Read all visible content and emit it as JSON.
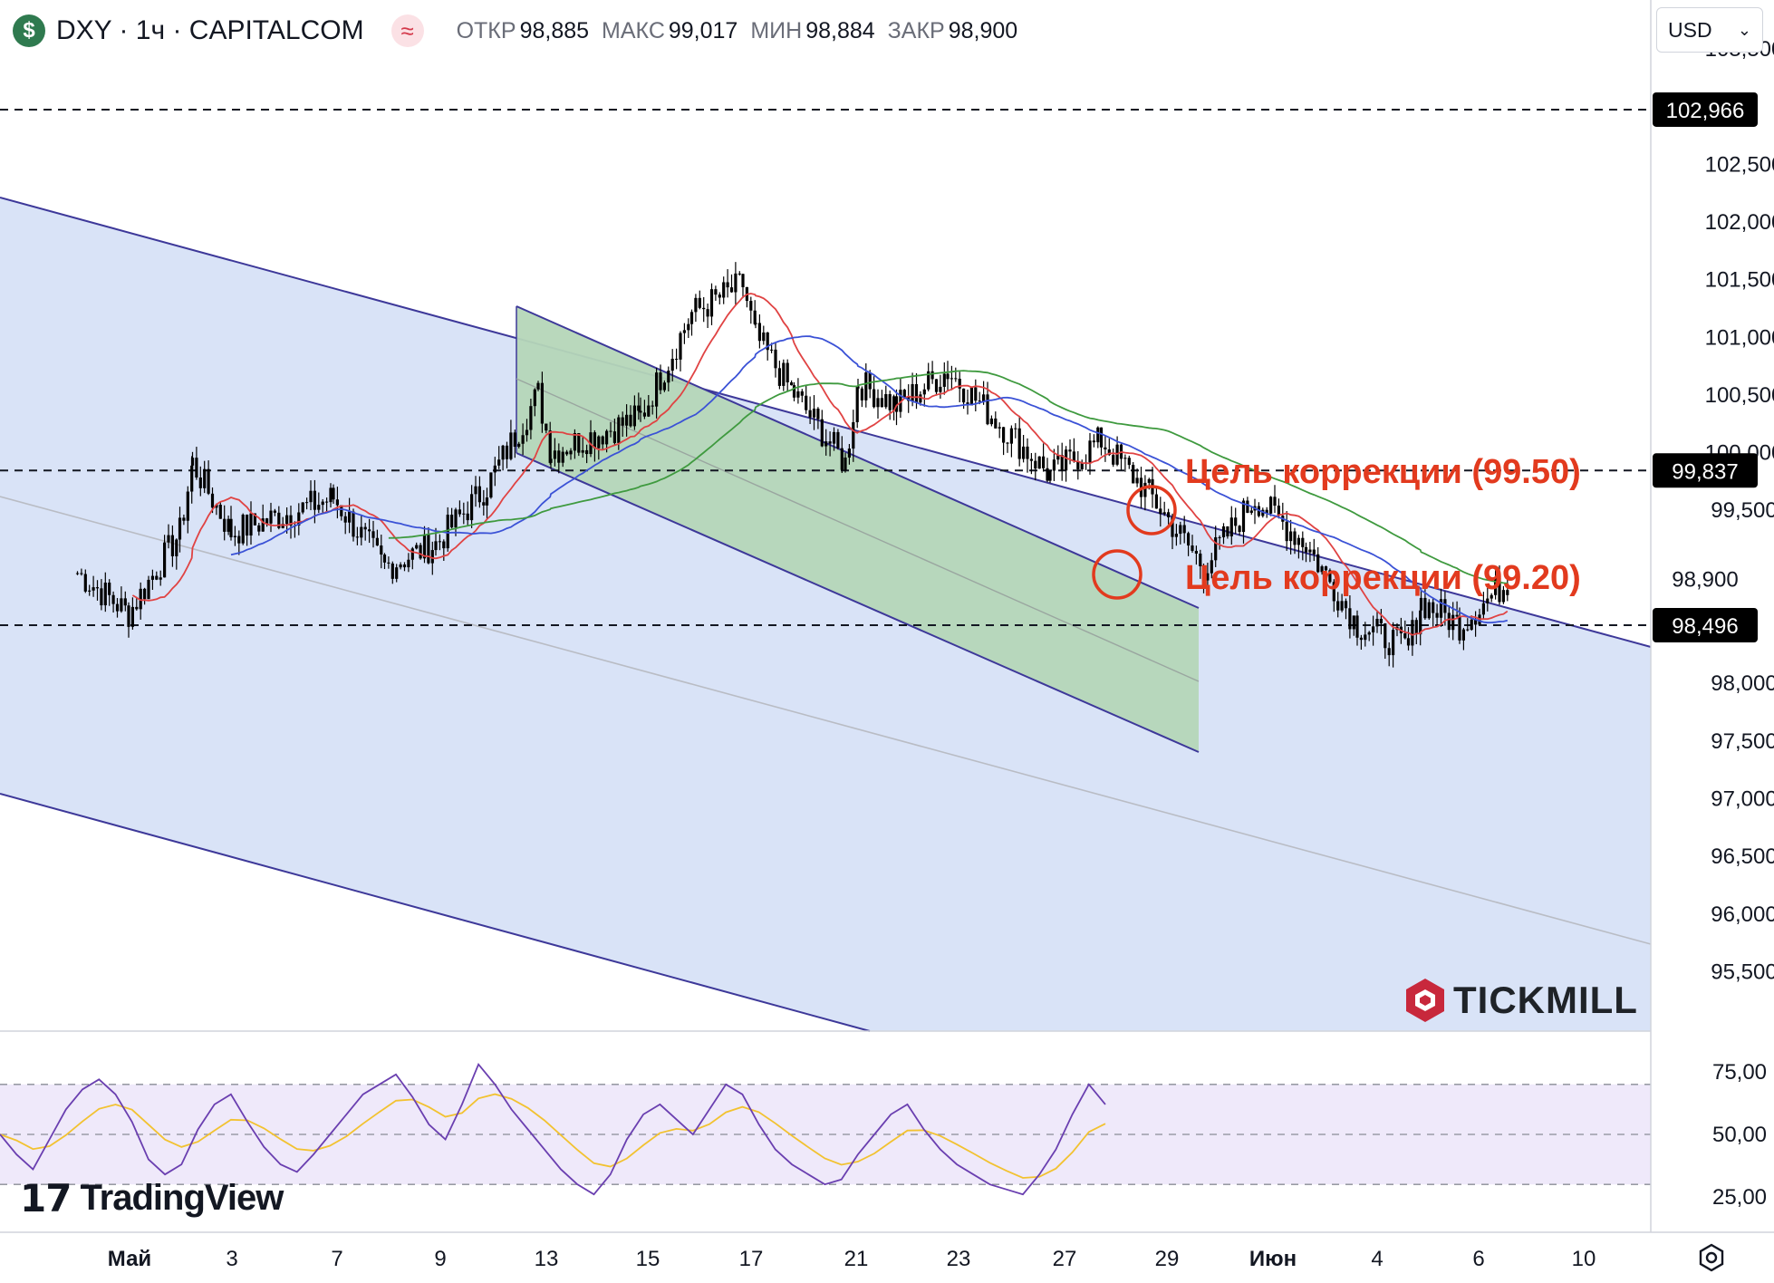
{
  "header": {
    "symbol": "DXY · 1ч · CAPITALCOM",
    "ohlc": [
      {
        "label": "ОТКР",
        "value": "98,885"
      },
      {
        "label": "МАКС",
        "value": "99,017"
      },
      {
        "label": "МИН",
        "value": "98,884"
      },
      {
        "label": "ЗАКР",
        "value": "98,900"
      }
    ],
    "currency": "USD"
  },
  "icons": {
    "coin": "dollar-icon",
    "wave": "approx-wave-icon",
    "settings": "settings-icon"
  },
  "brands": {
    "tradingview": "TradingView",
    "tickmill": "TICKMILL"
  },
  "annotations": [
    {
      "text": "Цель коррекции (99.50)",
      "color": "#e23a1e"
    },
    {
      "text": "Цель коррекции (99.20)",
      "color": "#e23a1e"
    }
  ],
  "chart_data": {
    "type": "candlestick",
    "timeframe": "1h",
    "instrument": "DXY",
    "price_axis": {
      "ticks": [
        "103,500",
        "102,500",
        "102,000",
        "101,500",
        "101,000",
        "100,500",
        "100,000",
        "99,500",
        "98,000",
        "97,500",
        "97,000",
        "96,500",
        "96,000",
        "95,500"
      ],
      "ylim": [
        95.25,
        103.75
      ]
    },
    "price_badges": [
      {
        "value": "102,966",
        "style": "black"
      },
      {
        "value": "99,837",
        "style": "black"
      },
      {
        "value": "98,900",
        "style": "white"
      },
      {
        "value": "98,496",
        "style": "black"
      }
    ],
    "horizontal_levels": [
      102.966,
      99.837,
      98.496
    ],
    "x_axis": {
      "labels": [
        "Май",
        "3",
        "7",
        "9",
        "13",
        "15",
        "17",
        "21",
        "23",
        "27",
        "29",
        "Июн",
        "4",
        "6",
        "10"
      ]
    },
    "close_path": [
      [
        "Apr 30",
        98.95
      ],
      [
        "May 1",
        98.6
      ],
      [
        "May 2",
        99.3
      ],
      [
        "May 2",
        99.9
      ],
      [
        "May 3",
        99.3
      ],
      [
        "May 5",
        99.6
      ],
      [
        "May 6",
        99.0
      ],
      [
        "May 7",
        99.2
      ],
      [
        "May 8",
        99.7
      ],
      [
        "May 9",
        100.5
      ],
      [
        "May 9",
        100.0
      ],
      [
        "May 11",
        100.3
      ],
      [
        "May 12",
        101.2
      ],
      [
        "May 13",
        101.45
      ],
      [
        "May 13",
        101.0
      ],
      [
        "May 14",
        100.5
      ],
      [
        "May 15",
        99.9
      ],
      [
        "May 15",
        100.6
      ],
      [
        "May 16",
        100.4
      ],
      [
        "May 17",
        100.7
      ],
      [
        "May 19",
        99.8
      ],
      [
        "May 20",
        100.1
      ],
      [
        "May 21",
        99.6
      ],
      [
        "May 22",
        99.0
      ],
      [
        "May 23",
        99.6
      ],
      [
        "May 24",
        99.2
      ],
      [
        "May 25",
        98.5
      ],
      [
        "May 26",
        98.3
      ],
      [
        "May 26",
        98.7
      ],
      [
        "May 27",
        98.5
      ],
      [
        "May 28",
        98.9
      ]
    ],
    "moving_averages": [
      {
        "color": "#e04343"
      },
      {
        "color": "#3b52d6"
      },
      {
        "color": "#3f9a3f"
      }
    ],
    "channels": [
      {
        "fill": "#d9e3f7",
        "edge": "#3d3899"
      },
      {
        "fill": "#b5d6b8",
        "edge": "#3d3899"
      }
    ],
    "targets": [
      99.5,
      99.2
    ],
    "rsi": {
      "ticks": [
        "75,00",
        "50,00",
        "25,00"
      ],
      "bands": [
        70,
        50,
        30
      ],
      "values": [
        50,
        42,
        36,
        48,
        60,
        68,
        72,
        66,
        55,
        40,
        34,
        38,
        52,
        62,
        66,
        55,
        45,
        38,
        35,
        42,
        50,
        58,
        66,
        70,
        74,
        65,
        54,
        48,
        62,
        78,
        70,
        60,
        52,
        44,
        36,
        30,
        26,
        34,
        48,
        58,
        62,
        56,
        50,
        60,
        70,
        66,
        54,
        44,
        38,
        34,
        30,
        32,
        42,
        50,
        58,
        62,
        52,
        44,
        38,
        34,
        30,
        28,
        26,
        34,
        44,
        58,
        70,
        62
      ]
    }
  }
}
